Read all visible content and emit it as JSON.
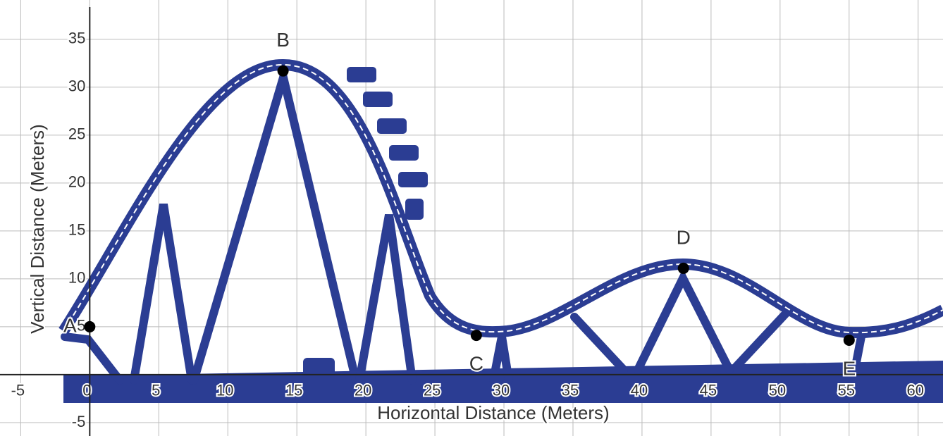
{
  "chart_data": {
    "type": "scatter",
    "xlabel": "Horizontal Distance (Meters)",
    "ylabel": "Vertical Distance (Meters)",
    "labels": [
      "A",
      "B",
      "C",
      "D",
      "E"
    ],
    "x": [
      0,
      14,
      28,
      43,
      55
    ],
    "values": [
      5,
      31.7,
      4.1,
      11.1,
      3.6
    ],
    "color": "#000000",
    "xlim": [
      -6.5,
      61.8
    ],
    "ylim": [
      -6.4,
      39.1
    ],
    "xticks": [
      -5,
      0,
      5,
      10,
      15,
      20,
      25,
      30,
      35,
      40,
      45,
      50,
      55,
      60
    ],
    "yticks": [
      -5,
      5,
      10,
      15,
      20,
      25,
      30,
      35
    ],
    "grid": true
  }
}
